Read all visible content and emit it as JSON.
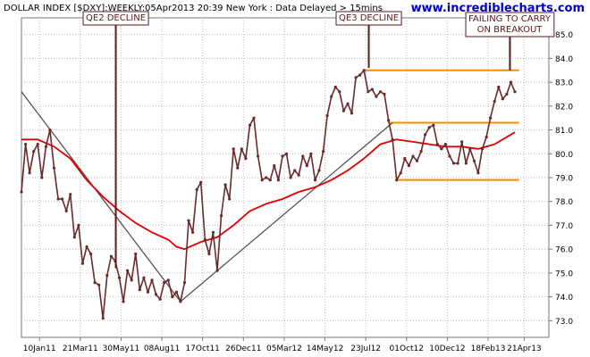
{
  "header": {
    "title": "DOLLAR INDEX [$DXY]:WEEKLY:05Apr2013 20:39 New York : Data Delayed > 15mins",
    "watermark": "www.incrediblecharts.com"
  },
  "annotations": {
    "qe2": "QE2 DECLINE",
    "qe3": "QE3 DECLINE",
    "failing_line1": "FAILING TO CARRY",
    "failing_line2": "ON BREAKOUT"
  },
  "colors": {
    "price": "#6b2a2a",
    "moving_average": "#e00000",
    "support_resistance": "#ff8c00",
    "trendline": "#555555",
    "annotation": "#5a1a1a",
    "watermark": "#0000cc"
  },
  "chart_data": {
    "type": "line",
    "title": "DOLLAR INDEX [$DXY]:WEEKLY:05Apr2013 20:39 New York : Data Delayed > 15mins",
    "xlabel": "",
    "ylabel": "",
    "x_range": [
      "2010-12-10",
      "2013-04-05"
    ],
    "ylim": [
      72.3,
      85.7
    ],
    "y_ticks": [
      73,
      74,
      75,
      76,
      77,
      78,
      79,
      80,
      81,
      82,
      83,
      84,
      85
    ],
    "x_ticks": [
      {
        "label": "10Jan11",
        "date": "2011-01-10"
      },
      {
        "label": "21Mar11",
        "date": "2011-03-21"
      },
      {
        "label": "30May11",
        "date": "2011-05-30"
      },
      {
        "label": "08Aug11",
        "date": "2011-08-08"
      },
      {
        "label": "17Oct11",
        "date": "2011-10-17"
      },
      {
        "label": "26Dec11",
        "date": "2011-12-26"
      },
      {
        "label": "05Mar12",
        "date": "2012-03-05"
      },
      {
        "label": "14May12",
        "date": "2012-05-14"
      },
      {
        "label": "23Jul12",
        "date": "2012-07-23"
      },
      {
        "label": "01Oct12",
        "date": "2012-10-01"
      },
      {
        "label": "10Dec12",
        "date": "2012-12-10"
      },
      {
        "label": "18Feb13",
        "date": "2013-02-18"
      },
      {
        "label": "21Apr13",
        "date": "2013-04-21"
      }
    ],
    "grid": true,
    "series": [
      {
        "name": "",
        "role": "price",
        "points": [
          [
            "2010-12-10",
            78.4
          ],
          [
            "2010-12-17",
            80.4
          ],
          [
            "2010-12-24",
            79.2
          ],
          [
            "2010-12-31",
            80.1
          ],
          [
            "2011-01-07",
            80.4
          ],
          [
            "2011-01-14",
            79.0
          ],
          [
            "2011-01-21",
            80.3
          ],
          [
            "2011-01-28",
            81.0
          ],
          [
            "2011-02-04",
            79.4
          ],
          [
            "2011-02-11",
            78.1
          ],
          [
            "2011-02-18",
            78.1
          ],
          [
            "2011-02-25",
            77.6
          ],
          [
            "2011-03-04",
            78.3
          ],
          [
            "2011-03-11",
            76.5
          ],
          [
            "2011-03-18",
            77.0
          ],
          [
            "2011-03-25",
            75.4
          ],
          [
            "2011-04-01",
            76.1
          ],
          [
            "2011-04-08",
            75.8
          ],
          [
            "2011-04-15",
            74.6
          ],
          [
            "2011-04-22",
            74.5
          ],
          [
            "2011-04-29",
            73.1
          ],
          [
            "2011-05-06",
            74.9
          ],
          [
            "2011-05-13",
            75.7
          ],
          [
            "2011-05-20",
            75.5
          ],
          [
            "2011-05-27",
            74.8
          ],
          [
            "2011-06-03",
            73.8
          ],
          [
            "2011-06-10",
            75.1
          ],
          [
            "2011-06-17",
            74.7
          ],
          [
            "2011-06-24",
            75.8
          ],
          [
            "2011-07-01",
            74.3
          ],
          [
            "2011-07-08",
            74.8
          ],
          [
            "2011-07-15",
            74.2
          ],
          [
            "2011-07-22",
            74.7
          ],
          [
            "2011-07-29",
            74.1
          ],
          [
            "2011-08-05",
            73.9
          ],
          [
            "2011-08-12",
            74.6
          ],
          [
            "2011-08-19",
            74.7
          ],
          [
            "2011-08-26",
            74.0
          ],
          [
            "2011-09-02",
            74.2
          ],
          [
            "2011-09-09",
            73.8
          ],
          [
            "2011-09-16",
            74.6
          ],
          [
            "2011-09-23",
            77.2
          ],
          [
            "2011-09-30",
            76.7
          ],
          [
            "2011-10-07",
            78.5
          ],
          [
            "2011-10-14",
            78.8
          ],
          [
            "2011-10-21",
            76.4
          ],
          [
            "2011-10-28",
            75.8
          ],
          [
            "2011-11-04",
            76.7
          ],
          [
            "2011-11-11",
            75.1
          ],
          [
            "2011-11-18",
            77.4
          ],
          [
            "2011-11-25",
            78.7
          ],
          [
            "2011-12-02",
            78.1
          ],
          [
            "2011-12-09",
            80.2
          ],
          [
            "2011-12-16",
            79.4
          ],
          [
            "2011-12-23",
            80.2
          ],
          [
            "2011-12-30",
            79.8
          ],
          [
            "2012-01-06",
            81.2
          ],
          [
            "2012-01-13",
            81.5
          ],
          [
            "2012-01-20",
            79.9
          ],
          [
            "2012-01-27",
            78.9
          ],
          [
            "2012-02-03",
            79.0
          ],
          [
            "2012-02-10",
            78.9
          ],
          [
            "2012-02-17",
            79.5
          ],
          [
            "2012-02-24",
            78.9
          ],
          [
            "2012-03-02",
            79.9
          ],
          [
            "2012-03-09",
            80.0
          ],
          [
            "2012-03-16",
            79.0
          ],
          [
            "2012-03-23",
            79.3
          ],
          [
            "2012-03-30",
            79.1
          ],
          [
            "2012-04-06",
            79.9
          ],
          [
            "2012-04-13",
            79.5
          ],
          [
            "2012-04-20",
            80.0
          ],
          [
            "2012-04-27",
            78.9
          ],
          [
            "2012-05-04",
            79.3
          ],
          [
            "2012-05-11",
            80.1
          ],
          [
            "2012-05-18",
            81.6
          ],
          [
            "2012-05-25",
            82.4
          ],
          [
            "2012-06-01",
            82.8
          ],
          [
            "2012-06-08",
            82.6
          ],
          [
            "2012-06-15",
            81.8
          ],
          [
            "2012-06-22",
            82.1
          ],
          [
            "2012-06-29",
            81.7
          ],
          [
            "2012-07-06",
            83.2
          ],
          [
            "2012-07-13",
            83.3
          ],
          [
            "2012-07-20",
            83.5
          ],
          [
            "2012-07-27",
            82.6
          ],
          [
            "2012-08-03",
            82.7
          ],
          [
            "2012-08-10",
            82.4
          ],
          [
            "2012-08-17",
            82.6
          ],
          [
            "2012-08-24",
            82.5
          ],
          [
            "2012-08-31",
            81.4
          ],
          [
            "2012-09-07",
            80.6
          ],
          [
            "2012-09-14",
            78.9
          ],
          [
            "2012-09-21",
            79.2
          ],
          [
            "2012-09-28",
            79.8
          ],
          [
            "2012-10-05",
            79.5
          ],
          [
            "2012-10-12",
            79.9
          ],
          [
            "2012-10-19",
            79.7
          ],
          [
            "2012-10-26",
            80.1
          ],
          [
            "2012-11-02",
            80.8
          ],
          [
            "2012-11-09",
            81.1
          ],
          [
            "2012-11-16",
            81.2
          ],
          [
            "2012-11-23",
            80.4
          ],
          [
            "2012-11-30",
            80.2
          ],
          [
            "2012-12-07",
            80.4
          ],
          [
            "2012-12-14",
            79.9
          ],
          [
            "2012-12-21",
            79.6
          ],
          [
            "2012-12-28",
            79.6
          ],
          [
            "2013-01-04",
            80.5
          ],
          [
            "2013-01-11",
            79.6
          ],
          [
            "2013-01-18",
            80.2
          ],
          [
            "2013-01-25",
            79.7
          ],
          [
            "2013-02-01",
            79.2
          ],
          [
            "2013-02-08",
            80.2
          ],
          [
            "2013-02-15",
            80.7
          ],
          [
            "2013-02-22",
            81.5
          ],
          [
            "2013-03-01",
            82.2
          ],
          [
            "2013-03-08",
            82.8
          ],
          [
            "2013-03-15",
            82.3
          ],
          [
            "2013-03-22",
            82.5
          ],
          [
            "2013-03-29",
            83.0
          ],
          [
            "2013-04-05",
            82.6
          ]
        ]
      },
      {
        "name": "",
        "role": "moving-average",
        "points": [
          [
            "2010-12-10",
            80.6
          ],
          [
            "2011-01-07",
            80.6
          ],
          [
            "2011-02-04",
            80.3
          ],
          [
            "2011-03-04",
            79.8
          ],
          [
            "2011-04-01",
            78.9
          ],
          [
            "2011-04-29",
            78.2
          ],
          [
            "2011-05-27",
            77.6
          ],
          [
            "2011-06-24",
            77.1
          ],
          [
            "2011-07-22",
            76.7
          ],
          [
            "2011-08-19",
            76.4
          ],
          [
            "2011-09-02",
            76.1
          ],
          [
            "2011-09-16",
            76.0
          ],
          [
            "2011-10-14",
            76.3
          ],
          [
            "2011-11-11",
            76.5
          ],
          [
            "2011-12-09",
            77.0
          ],
          [
            "2012-01-06",
            77.6
          ],
          [
            "2012-02-03",
            77.9
          ],
          [
            "2012-03-02",
            78.1
          ],
          [
            "2012-03-30",
            78.4
          ],
          [
            "2012-04-27",
            78.6
          ],
          [
            "2012-05-25",
            78.9
          ],
          [
            "2012-06-22",
            79.3
          ],
          [
            "2012-07-20",
            79.8
          ],
          [
            "2012-08-17",
            80.4
          ],
          [
            "2012-09-14",
            80.6
          ],
          [
            "2012-10-12",
            80.5
          ],
          [
            "2012-11-09",
            80.4
          ],
          [
            "2012-12-07",
            80.3
          ],
          [
            "2013-01-04",
            80.3
          ],
          [
            "2013-02-01",
            80.2
          ],
          [
            "2013-03-01",
            80.4
          ],
          [
            "2013-04-05",
            80.9
          ]
        ]
      }
    ],
    "reference_lines": [
      {
        "role": "resistance",
        "y": 83.5,
        "x_from": "2012-07-20",
        "x_to": "2013-04-12"
      },
      {
        "role": "resistance",
        "y": 81.3,
        "x_from": "2012-08-31",
        "x_to": "2013-04-12"
      },
      {
        "role": "support",
        "y": 78.9,
        "x_from": "2012-09-14",
        "x_to": "2013-04-12"
      }
    ],
    "trendlines": [
      {
        "from": [
          "2010-12-10",
          82.6
        ],
        "to": [
          "2011-09-09",
          73.8
        ]
      },
      {
        "from": [
          "2011-09-09",
          73.8
        ],
        "to": [
          "2012-09-07",
          81.3
        ]
      }
    ]
  }
}
